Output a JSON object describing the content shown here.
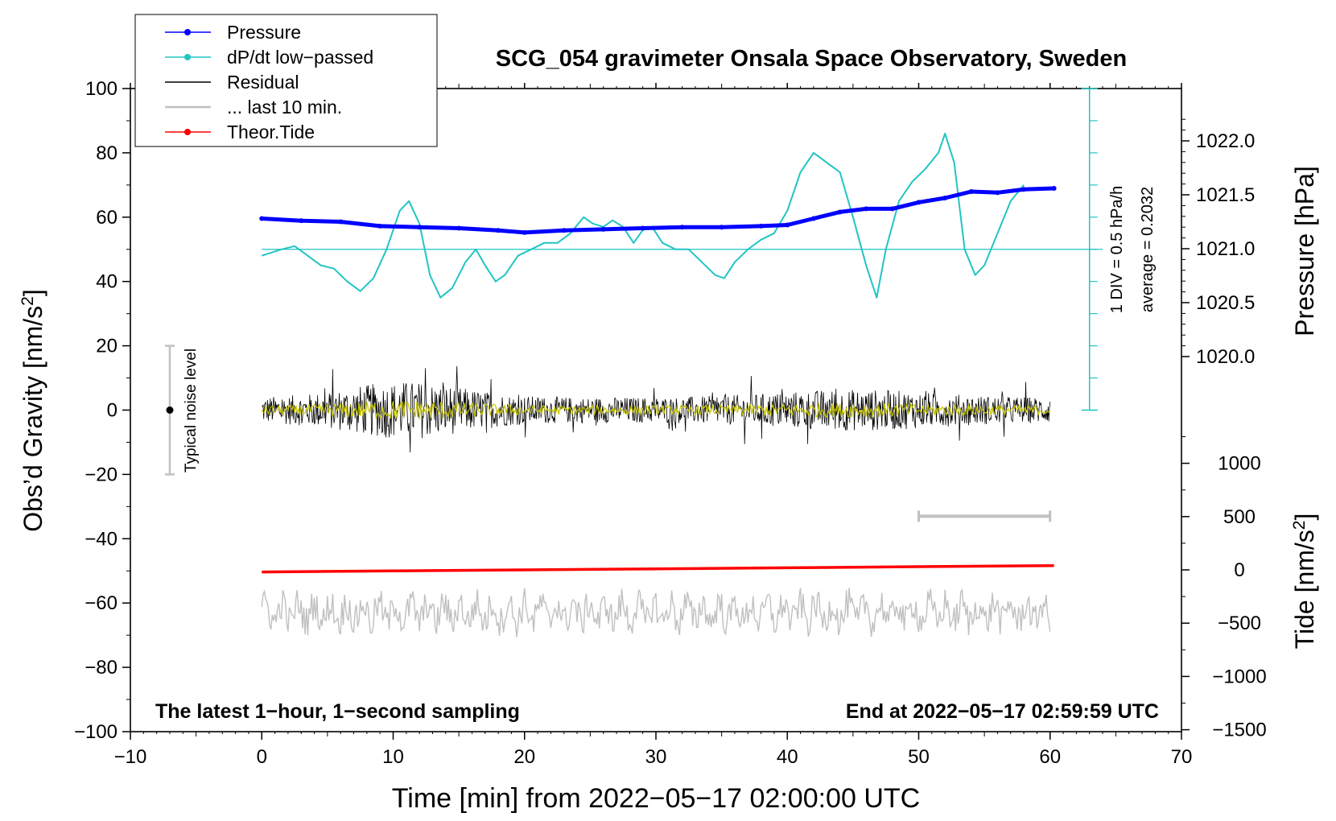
{
  "chart_data": {
    "type": "line",
    "title": "SCG_054 gravimeter Onsala Space Observatory, Sweden",
    "xlabel": "Time [min] from 2022−05−17 02:00:00 UTC",
    "ylabel_left": "Obs’d Gravity [nm/s",
    "ylabel_left_sup": "2",
    "ylabel_left_close": "]",
    "ylabel_pressure": "Pressure [hPa]",
    "ylabel_tide": "Tide [nm/s",
    "ylabel_tide_sup": "2",
    "ylabel_tide_close": "]",
    "xlim": [
      -10,
      70
    ],
    "ylim_left": [
      -100,
      100
    ],
    "x_ticks": [
      "−10",
      "0",
      "10",
      "20",
      "30",
      "40",
      "50",
      "60",
      "70"
    ],
    "y_ticks_left": [
      "100",
      "80",
      "60",
      "40",
      "20",
      "0",
      "−20",
      "−40",
      "−60",
      "−80",
      "−100"
    ],
    "pressure_ticks": [
      "1022.0",
      "1021.5",
      "1021.0",
      "1020.5",
      "1020.0"
    ],
    "tide_ticks": [
      "1000",
      "500",
      "0",
      "−500",
      "−1000",
      "−1500"
    ],
    "annotations": {
      "bottom_left": "The latest 1−hour, 1−second sampling",
      "bottom_right": "End at 2022−05−17 02:59:59 UTC",
      "noise_label": "Typical noise level",
      "div_label": "1 DIV = 0.5 hPa/h",
      "average_label": "average = 0.2032"
    },
    "legend": [
      {
        "label": "Pressure",
        "color": "#0000ff",
        "marker": true
      },
      {
        "label": "dP/dt low−passed",
        "color": "#22c4c4",
        "marker": true
      },
      {
        "label": "Residual",
        "color": "#000000",
        "marker": false
      },
      {
        "label": "... last 10 min.",
        "color": "#c0c0c0",
        "marker": false
      },
      {
        "label": "Theor.Tide",
        "color": "#ff0000",
        "marker": true
      }
    ],
    "series": [
      {
        "name": "Pressure",
        "axis": "pressure_hPa",
        "color": "#0000ff",
        "x": [
          0,
          3,
          6,
          9,
          12,
          15,
          18,
          20,
          23,
          26,
          29,
          32,
          35,
          38,
          40,
          42,
          44,
          46,
          48,
          50,
          52,
          54,
          56,
          58,
          60.3
        ],
        "y": [
          1021.28,
          1021.26,
          1021.25,
          1021.21,
          1021.2,
          1021.19,
          1021.17,
          1021.15,
          1021.17,
          1021.18,
          1021.19,
          1021.2,
          1021.2,
          1021.21,
          1021.22,
          1021.28,
          1021.34,
          1021.37,
          1021.37,
          1021.43,
          1021.47,
          1021.53,
          1021.52,
          1021.55,
          1021.56
        ]
      },
      {
        "name": "dP/dt low-passed",
        "axis": "gravity_div",
        "color": "#22c4c4",
        "x": [
          0,
          1.5,
          2.5,
          3.5,
          4.5,
          5.5,
          6.5,
          7.5,
          8.5,
          9.5,
          10.5,
          11.2,
          12,
          12.8,
          13.6,
          14.5,
          15.5,
          16.3,
          17,
          17.8,
          18.5,
          19.5,
          20.5,
          21.5,
          22.5,
          23.5,
          24.5,
          25.2,
          26,
          26.7,
          27.5,
          28.3,
          29,
          29.7,
          30.5,
          31.5,
          32.5,
          33.5,
          34.5,
          35.2,
          36,
          37,
          38,
          39,
          40,
          41,
          42,
          43,
          44,
          45,
          46,
          46.8,
          47.5,
          48.5,
          49.5,
          50.5,
          51.5,
          52,
          52.7,
          53.5,
          54.3,
          55,
          56,
          57,
          58
        ],
        "y": [
          48,
          50,
          51,
          48,
          45,
          44,
          40,
          37,
          41,
          50,
          62,
          65,
          58,
          42,
          35,
          38,
          46,
          50,
          45,
          40,
          42,
          48,
          50,
          52,
          52,
          55,
          60,
          58,
          57,
          59,
          57,
          52,
          56,
          57,
          52,
          50,
          50,
          46,
          42,
          41,
          46,
          50,
          53,
          55,
          62,
          74,
          80,
          77,
          74,
          60,
          45,
          35,
          50,
          65,
          71,
          75,
          80,
          86,
          77,
          50,
          42,
          45,
          55,
          65,
          70
        ]
      },
      {
        "name": "Theor.Tide",
        "axis": "tide",
        "color": "#ff0000",
        "x": [
          0,
          10,
          20,
          30,
          40,
          50,
          60.3
        ],
        "y": [
          -20,
          -10,
          0,
          10,
          20,
          30,
          40
        ]
      }
    ],
    "scale_bar": {
      "x": [
        50,
        60
      ],
      "y": -33
    }
  }
}
